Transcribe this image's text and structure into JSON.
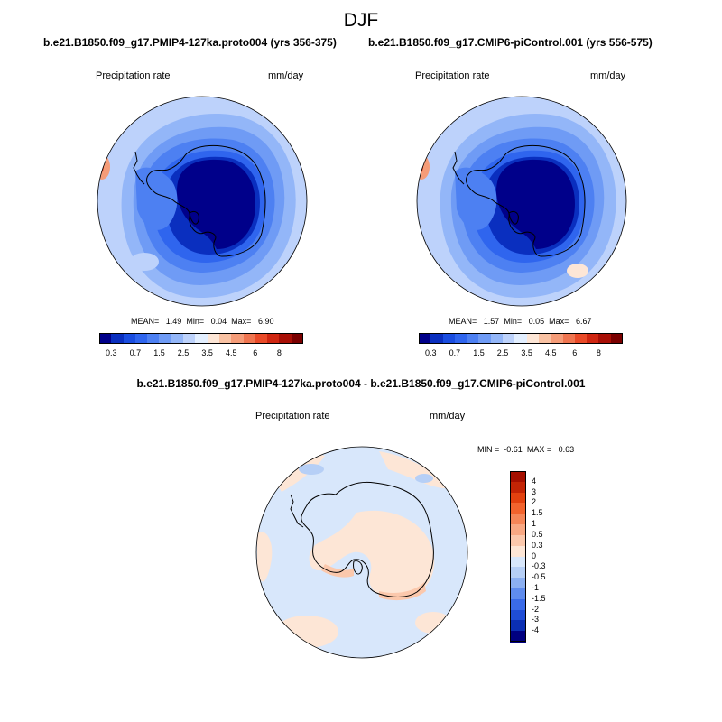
{
  "page": {
    "title": "DJF",
    "diff_title": "b.e21.B1850.f09_g17.PMIP4-127ka.proto004 - b.e21.B1850.f09_g17.CMIP6-piControl.001"
  },
  "panels": [
    {
      "case_title": "b.e21.B1850.f09_g17.PMIP4-127ka.proto004 (yrs 356-375)",
      "variable": "Precipitation rate",
      "units": "mm/day",
      "stats": {
        "mean_label": "MEAN=",
        "mean": "1.49",
        "min_label": "Min=",
        "min": "0.04",
        "max_label": "Max=",
        "max": "6.90"
      }
    },
    {
      "case_title": "b.e21.B1850.f09_g17.CMIP6-piControl.001 (yrs 556-575)",
      "variable": "Precipitation rate",
      "units": "mm/day",
      "stats": {
        "mean_label": "MEAN=",
        "mean": "1.57",
        "min_label": "Min=",
        "min": "0.05",
        "max_label": "Max=",
        "max": "6.67"
      }
    },
    {
      "variable": "Precipitation rate",
      "units": "mm/day",
      "stats": {
        "min_label": "MIN =",
        "min": "-0.61",
        "max_label": "MAX =",
        "max": "0.63"
      }
    }
  ],
  "colorbars": {
    "abs": {
      "labels": [
        "0.3",
        "0.7",
        "1.5",
        "2.5",
        "3.5",
        "4.5",
        "6",
        "8"
      ],
      "colors": [
        "#00008a",
        "#0a2fbf",
        "#1a4de0",
        "#2f65ee",
        "#4d80f2",
        "#6f9bf5",
        "#93b6f8",
        "#bdd2fb",
        "#e3efff",
        "#fde6d6",
        "#f9c2a3",
        "#f59c78",
        "#ef7550",
        "#e94a28",
        "#cf2611",
        "#a80f06",
        "#7a0000"
      ]
    },
    "diff": {
      "labels": [
        "4",
        "3",
        "2",
        "1.5",
        "1",
        "0.5",
        "0.3",
        "0",
        "-0.3",
        "-0.5",
        "-1",
        "-1.5",
        "-2",
        "-3",
        "-4"
      ],
      "colors": [
        "#a50f00",
        "#c32405",
        "#e2410f",
        "#f2632d",
        "#f58658",
        "#f8a883",
        "#fbc8ac",
        "#fde6d6",
        "#d8e7fb",
        "#b6cff6",
        "#8cb0f2",
        "#5f8cee",
        "#3a6be8",
        "#1f4dd6",
        "#0b2fb3",
        "#000080"
      ]
    }
  },
  "map_colors": {
    "ocean_far": "#bdd2fb",
    "ocean_mid": "#93b6f8",
    "ocean_inner": "#6f9bf5",
    "coast_band": "#4d80f2",
    "coast_inner": "#2f65ee",
    "coast_deep": "#0a2fbf",
    "continent": "#00008a",
    "red_spot": "#f59c78",
    "red_core": "#e94a28",
    "diff_neg": "#d8e7fb",
    "diff_pos": "#fde6d6",
    "diff_neg2": "#b6cff6",
    "diff_pos2": "#fbc8ac"
  }
}
